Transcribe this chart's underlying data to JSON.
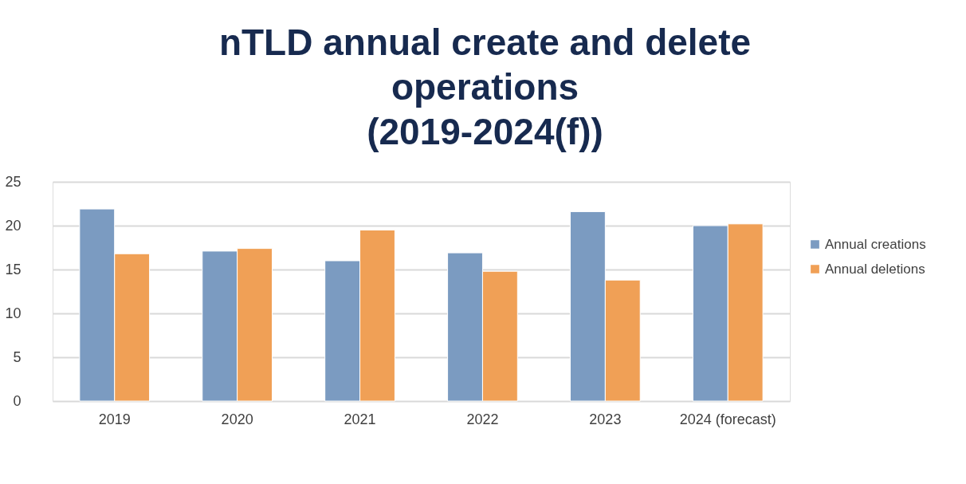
{
  "chart_data": {
    "type": "bar",
    "title": "nTLD annual create and delete\noperations\n(2019-2024(f))",
    "categories": [
      "2019",
      "2020",
      "2021",
      "2022",
      "2023",
      "2024 (forecast)"
    ],
    "series": [
      {
        "name": "Annual creations",
        "color": "#7b9bc1",
        "values": [
          21.9,
          17.1,
          16.0,
          16.9,
          21.6,
          20.0
        ]
      },
      {
        "name": "Annual deletions",
        "color": "#f0a056",
        "values": [
          16.8,
          17.4,
          19.5,
          14.8,
          13.8,
          20.2
        ]
      }
    ],
    "ylim": [
      0,
      25
    ],
    "yticks": [
      0,
      5,
      10,
      15,
      20,
      25
    ],
    "grid": "y",
    "legend": "right"
  }
}
